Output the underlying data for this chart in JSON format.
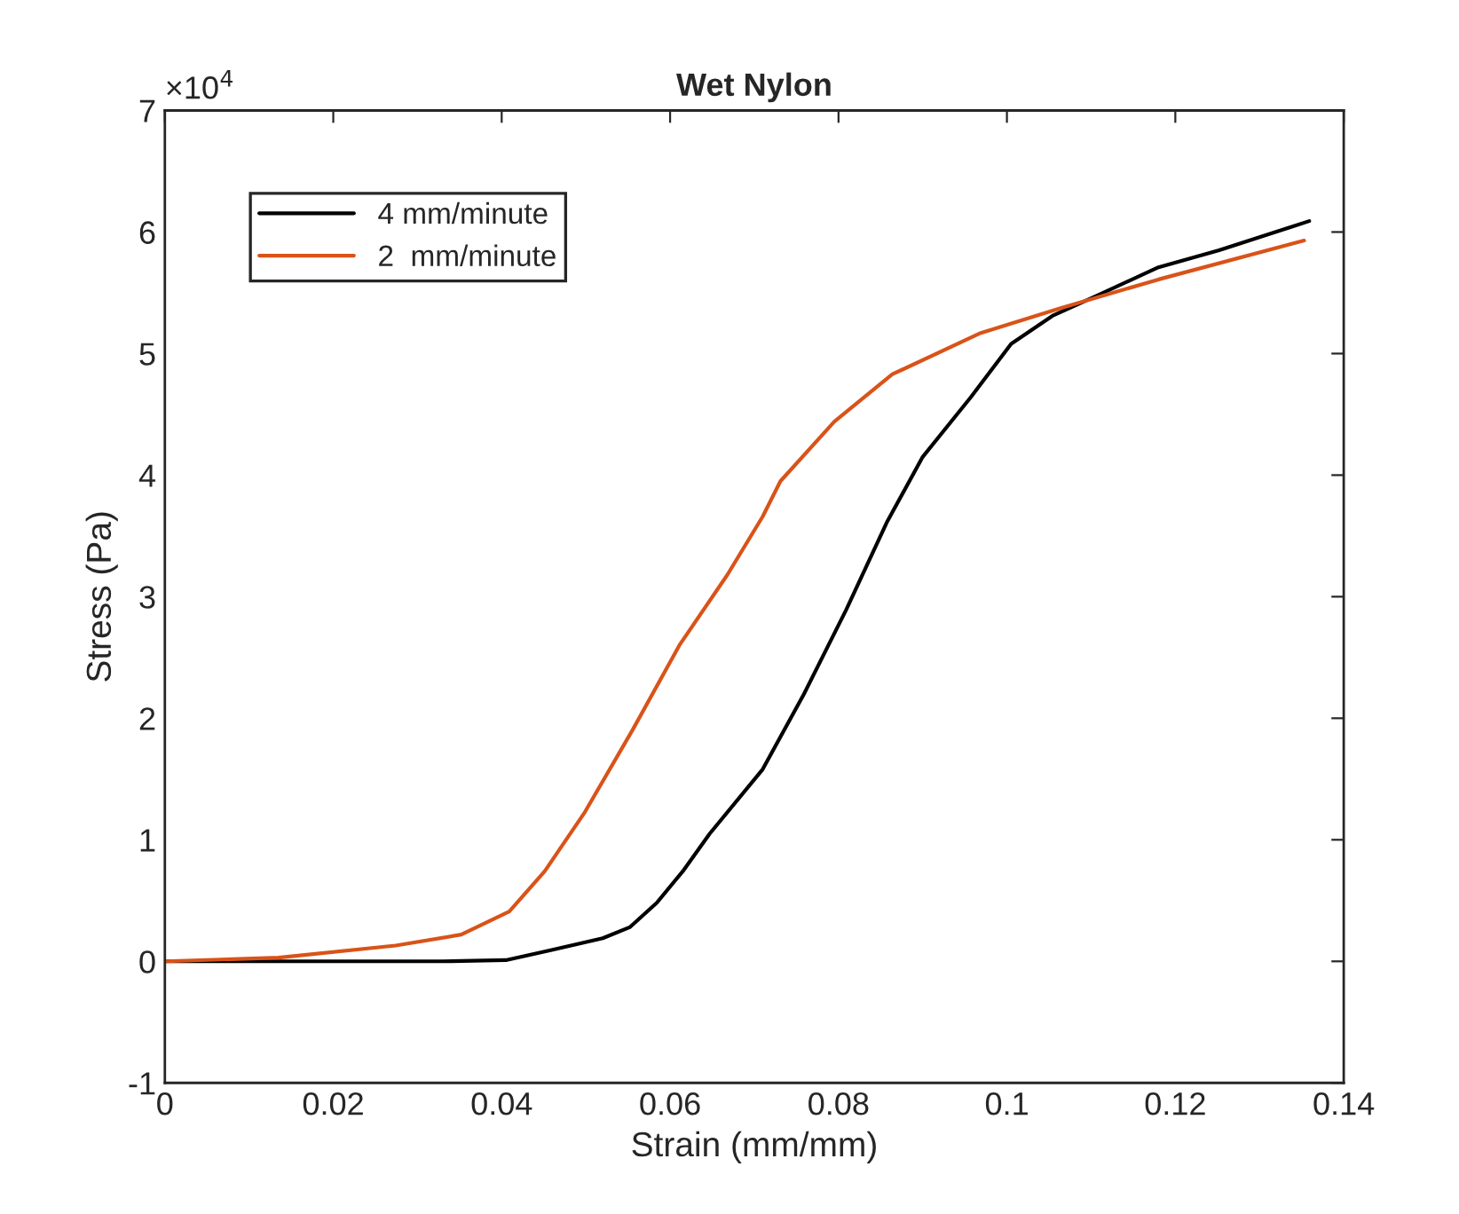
{
  "chart_data": {
    "type": "line",
    "title": "Wet Nylon",
    "xlabel": "Strain (mm/mm)",
    "ylabel": "Stress (Pa)",
    "annotations": [
      "×10$^{4}$"
    ],
    "xlim": [
      0,
      0.14
    ],
    "xticks": [
      0,
      0.02,
      0.04,
      0.06,
      0.08,
      0.1,
      0.12,
      0.14
    ],
    "ylim": [
      -1,
      7
    ],
    "yticks": [
      -1,
      0,
      1,
      2,
      3,
      4,
      5,
      6,
      7
    ],
    "grid": false,
    "legend": "top left",
    "series": [
      {
        "name": "4 mm/minute",
        "color": "#000000",
        "x": [
          0,
          0.012,
          0.033,
          0.0405,
          0.0457,
          0.052,
          0.0552,
          0.0584,
          0.0615,
          0.0647,
          0.071,
          0.0759,
          0.0809,
          0.0858,
          0.09,
          0.0957,
          0.1005,
          0.1054,
          0.1111,
          0.118,
          0.1252,
          0.1359
        ],
        "values": [
          0,
          0,
          0,
          0.01,
          0.09,
          0.19,
          0.28,
          0.48,
          0.74,
          1.05,
          1.58,
          2.2,
          2.89,
          3.62,
          4.15,
          4.64,
          5.08,
          5.31,
          5.49,
          5.71,
          5.85,
          6.09
        ]
      },
      {
        "name": "2  mm/minute",
        "color": "#d95319",
        "x": [
          0,
          0.0135,
          0.0274,
          0.0352,
          0.0409,
          0.0451,
          0.0499,
          0.0556,
          0.0611,
          0.0668,
          0.071,
          0.0731,
          0.0795,
          0.0864,
          0.0969,
          0.1062,
          0.118,
          0.1353
        ],
        "values": [
          0,
          0.03,
          0.13,
          0.22,
          0.41,
          0.74,
          1.23,
          1.91,
          2.6,
          3.18,
          3.66,
          3.95,
          4.44,
          4.83,
          5.17,
          5.37,
          5.61,
          5.93
        ]
      }
    ]
  }
}
